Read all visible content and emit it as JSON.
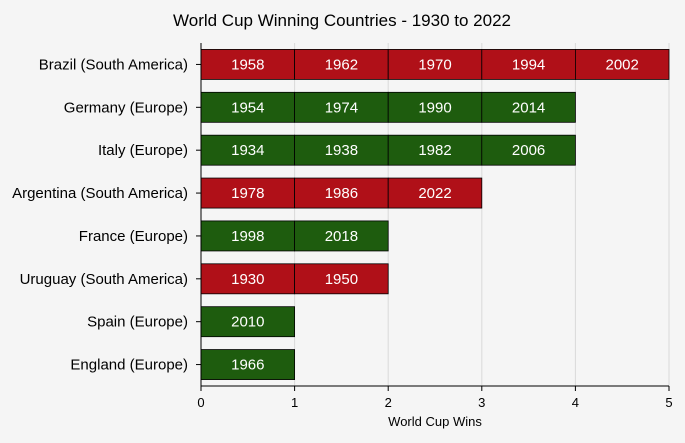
{
  "chart_data": {
    "type": "bar",
    "orientation": "horizontal",
    "stacked": true,
    "title": "World Cup Winning Countries - 1930 to 2022",
    "xlabel": "World Cup Wins",
    "ylabel": "",
    "xlim": [
      0,
      5
    ],
    "xticks": [
      "0",
      "1",
      "2",
      "3",
      "4",
      "5"
    ],
    "grid": "vertical",
    "colors": {
      "South America": "#b01018",
      "Europe": "#1e5c0e"
    },
    "categories": [
      {
        "label": "Brazil (South America)",
        "region": "South America",
        "wins": 5,
        "years": [
          "1958",
          "1962",
          "1970",
          "1994",
          "2002"
        ]
      },
      {
        "label": "Germany (Europe)",
        "region": "Europe",
        "wins": 4,
        "years": [
          "1954",
          "1974",
          "1990",
          "2014"
        ]
      },
      {
        "label": "Italy (Europe)",
        "region": "Europe",
        "wins": 4,
        "years": [
          "1934",
          "1938",
          "1982",
          "2006"
        ]
      },
      {
        "label": "Argentina (South America)",
        "region": "South America",
        "wins": 3,
        "years": [
          "1978",
          "1986",
          "2022"
        ]
      },
      {
        "label": "France (Europe)",
        "region": "Europe",
        "wins": 2,
        "years": [
          "1998",
          "2018"
        ]
      },
      {
        "label": "Uruguay (South America)",
        "region": "South America",
        "wins": 2,
        "years": [
          "1930",
          "1950"
        ]
      },
      {
        "label": "Spain (Europe)",
        "region": "Europe",
        "wins": 1,
        "years": [
          "2010"
        ]
      },
      {
        "label": "England (Europe)",
        "region": "Europe",
        "wins": 1,
        "years": [
          "1966"
        ]
      }
    ]
  }
}
